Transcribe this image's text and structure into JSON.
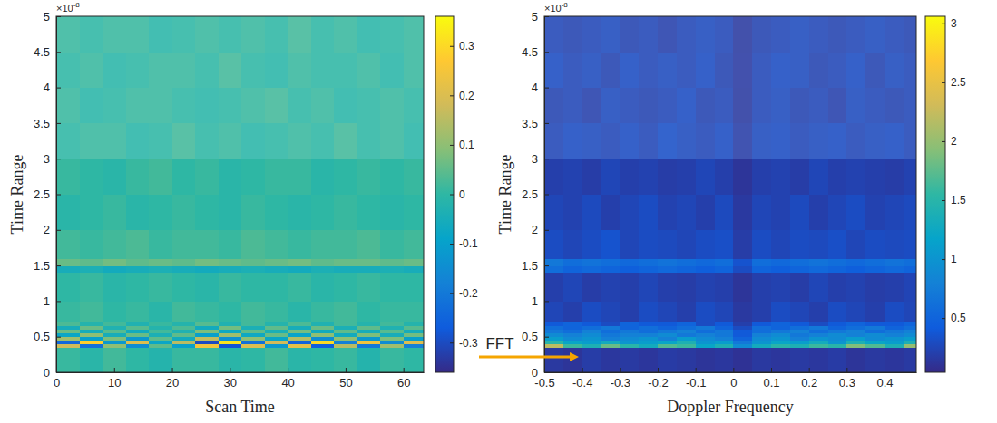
{
  "arrow_label": "FFT",
  "chart_data": [
    {
      "type": "heatmap",
      "x_label": "Scan Time",
      "y_label": "Time Range",
      "y_multiplier": {
        "base": "×10",
        "exponent": "-8"
      },
      "xlim": [
        0,
        63.5
      ],
      "xticks": [
        0,
        10,
        20,
        30,
        40,
        50,
        60
      ],
      "ylim": [
        0,
        5
      ],
      "yticks": [
        0,
        0.5,
        1,
        1.5,
        2,
        2.5,
        3,
        3.5,
        4,
        4.5,
        5
      ],
      "x_edges": [
        0,
        4,
        8,
        12,
        16,
        20,
        24,
        28,
        32,
        36,
        40,
        44,
        48,
        52,
        56,
        60,
        64
      ],
      "y_edges": [
        0,
        0.35,
        0.4,
        0.45,
        0.5,
        0.55,
        0.6,
        0.65,
        0.7,
        1,
        1.4,
        1.5,
        1.6,
        2,
        2.5,
        3,
        3.5,
        4,
        4.5,
        5
      ],
      "cells": [
        [
          0.01,
          -0.01,
          0.02,
          0,
          -0.02,
          0.01,
          0.01,
          -0.01,
          0,
          0.02,
          -0.01,
          0,
          0.01,
          -0.02,
          0.01,
          0
        ],
        [
          0.18,
          -0.22,
          0.1,
          -0.15,
          0.05,
          -0.1,
          0.25,
          -0.28,
          0.2,
          -0.12,
          0.22,
          -0.26,
          0.15,
          -0.2,
          0.12,
          -0.18
        ],
        [
          -0.24,
          0.28,
          -0.12,
          0.2,
          -0.08,
          0.15,
          -0.3,
          0.32,
          -0.22,
          0.18,
          -0.25,
          0.3,
          -0.18,
          0.24,
          -0.15,
          0.2
        ],
        [
          0.12,
          -0.1,
          0.08,
          -0.12,
          0.05,
          -0.06,
          0.16,
          -0.14,
          0.1,
          -0.08,
          0.14,
          -0.15,
          0.1,
          -0.12,
          0.08,
          -0.1
        ],
        [
          -0.08,
          0.1,
          -0.05,
          0.06,
          -0.04,
          0.05,
          -0.1,
          0.12,
          -0.07,
          0.06,
          -0.09,
          0.1,
          -0.06,
          0.08,
          -0.05,
          0.07
        ],
        [
          0.06,
          -0.05,
          0.04,
          -0.06,
          0.02,
          -0.03,
          0.08,
          -0.07,
          0.05,
          -0.04,
          0.07,
          -0.06,
          0.05,
          -0.05,
          0.04,
          -0.05
        ],
        [
          -0.05,
          0.06,
          -0.03,
          0.04,
          -0.02,
          0.03,
          -0.06,
          0.07,
          -0.04,
          0.05,
          -0.05,
          0.06,
          -0.04,
          0.05,
          -0.03,
          0.04
        ],
        [
          0.03,
          -0.02,
          0.02,
          -0.03,
          0.01,
          -0.02,
          0.04,
          -0.03,
          0.02,
          -0.02,
          0.03,
          -0.03,
          0.02,
          -0.02,
          0.02,
          -0.02
        ],
        [
          0.01,
          0.02,
          0,
          0.01,
          -0.01,
          0.02,
          0.01,
          0,
          0.02,
          0.01,
          -0.01,
          0.01,
          0.02,
          0,
          0.01,
          0.01
        ],
        [
          0,
          0.01,
          -0.01,
          0,
          0.01,
          0,
          -0.01,
          0.01,
          0,
          0,
          0.01,
          -0.01,
          0,
          0.01,
          0,
          0
        ],
        [
          -0.05,
          -0.04,
          -0.06,
          -0.05,
          -0.04,
          -0.05,
          -0.06,
          -0.05,
          -0.04,
          -0.05,
          -0.06,
          -0.04,
          -0.05,
          -0.05,
          -0.04,
          -0.05
        ],
        [
          0.06,
          0.05,
          0.07,
          0.05,
          0.06,
          0.05,
          0.07,
          0.06,
          0.05,
          0.06,
          0.07,
          0.05,
          0.06,
          0.06,
          0.05,
          0.06
        ],
        [
          0.02,
          0.01,
          0.02,
          0.03,
          0.01,
          0.02,
          0.02,
          0.01,
          0.03,
          0.02,
          0.01,
          0.02,
          0.02,
          0.03,
          0.01,
          0.02
        ],
        [
          -0.01,
          0,
          0.01,
          -0.01,
          0,
          0.01,
          0,
          -0.01,
          0.01,
          0,
          -0.01,
          0,
          0.01,
          0,
          -0.01,
          0
        ],
        [
          0.01,
          0,
          -0.01,
          0.01,
          0.02,
          0,
          0.01,
          -0.01,
          0,
          0.01,
          0.01,
          -0.01,
          0,
          0.01,
          0,
          0.01
        ],
        [
          0,
          0.01,
          0.01,
          -0.01,
          0,
          0.02,
          0,
          0.01,
          -0.01,
          0,
          0.01,
          0,
          0.02,
          0,
          0.01,
          -0.01
        ],
        [
          0.01,
          -0.01,
          0,
          0.01,
          0.01,
          0,
          -0.01,
          0,
          0.01,
          0.02,
          0,
          0.01,
          -0.01,
          0,
          0.01,
          0
        ],
        [
          0,
          0.01,
          -0.01,
          0,
          0.01,
          0.01,
          0,
          0.02,
          0,
          -0.01,
          0.01,
          0,
          0,
          0.01,
          -0.01,
          0.01
        ],
        [
          0.01,
          0,
          0.01,
          0.01,
          -0.01,
          0,
          0.01,
          0,
          0.01,
          0,
          0.02,
          0,
          0.01,
          -0.01,
          0,
          0.01
        ]
      ],
      "colorbar": {
        "range": [
          -0.36,
          0.36
        ],
        "ticks": [
          -0.3,
          -0.2,
          -0.1,
          0,
          0.1,
          0.2,
          0.3
        ]
      }
    },
    {
      "type": "heatmap",
      "x_label": "Doppler Frequency",
      "y_label": "Time Range",
      "y_multiplier": {
        "base": "×10",
        "exponent": "-8"
      },
      "xlim": [
        -0.5,
        0.484
      ],
      "xticks": [
        -0.5,
        -0.4,
        -0.3,
        -0.2,
        -0.1,
        0,
        0.1,
        0.2,
        0.3,
        0.4
      ],
      "ylim": [
        0,
        5
      ],
      "yticks": [
        0,
        0.5,
        1,
        1.5,
        2,
        2.5,
        3,
        3.5,
        4,
        4.5,
        5
      ],
      "x_edges": [
        -0.5,
        -0.45,
        -0.4,
        -0.35,
        -0.3,
        -0.25,
        -0.2,
        -0.15,
        -0.1,
        -0.05,
        0,
        0.05,
        0.1,
        0.15,
        0.2,
        0.25,
        0.3,
        0.35,
        0.4,
        0.45,
        0.5
      ],
      "y_edges": [
        0,
        0.35,
        0.4,
        0.45,
        0.5,
        0.55,
        0.6,
        0.65,
        0.7,
        1,
        1.4,
        1.5,
        1.6,
        2,
        2.5,
        3,
        3.5,
        4,
        4.5,
        5
      ],
      "cells": [
        [
          0.15,
          0.12,
          0.18,
          0.14,
          0.16,
          0.13,
          0.17,
          0.15,
          0.12,
          0.14,
          0.1,
          0.15,
          0.13,
          0.16,
          0.14,
          0.17,
          0.12,
          0.15,
          0.13,
          0.16
        ],
        [
          2.2,
          1.6,
          1.4,
          1.8,
          1.5,
          1.3,
          1.7,
          1.6,
          1.2,
          1.4,
          0.9,
          1.3,
          1.5,
          1.4,
          1.6,
          1.5,
          1.9,
          1.7,
          1.4,
          2.0
        ],
        [
          1.5,
          1.2,
          1.1,
          1.3,
          1.0,
          1.1,
          1.2,
          1.4,
          1.0,
          1.1,
          0.7,
          1.0,
          1.2,
          1.1,
          1.3,
          1.0,
          1.4,
          1.2,
          1.1,
          1.4
        ],
        [
          1.1,
          0.9,
          1.0,
          0.8,
          0.9,
          1.0,
          0.8,
          1.1,
          0.9,
          0.8,
          0.5,
          0.9,
          1.0,
          0.8,
          1.0,
          0.9,
          1.1,
          0.9,
          1.0,
          1.1
        ],
        [
          0.9,
          0.8,
          0.9,
          0.7,
          0.8,
          0.8,
          0.9,
          0.7,
          0.8,
          0.7,
          0.4,
          0.8,
          0.9,
          0.7,
          0.8,
          0.9,
          0.8,
          0.9,
          0.8,
          0.9
        ],
        [
          0.7,
          0.6,
          0.8,
          0.6,
          0.7,
          0.6,
          0.7,
          0.8,
          0.6,
          0.7,
          0.4,
          0.6,
          0.7,
          0.8,
          0.6,
          0.7,
          0.8,
          0.6,
          0.7,
          0.8
        ],
        [
          0.6,
          0.5,
          0.6,
          0.7,
          0.5,
          0.6,
          0.5,
          0.6,
          0.7,
          0.5,
          0.3,
          0.6,
          0.5,
          0.6,
          0.7,
          0.5,
          0.6,
          0.7,
          0.5,
          0.6
        ],
        [
          0.4,
          0.5,
          0.4,
          0.3,
          0.5,
          0.4,
          0.4,
          0.5,
          0.3,
          0.4,
          0.2,
          0.4,
          0.5,
          0.4,
          0.3,
          0.4,
          0.5,
          0.4,
          0.4,
          0.5
        ],
        [
          0.25,
          0.2,
          0.3,
          0.25,
          0.2,
          0.3,
          0.25,
          0.2,
          0.3,
          0.25,
          0.15,
          0.2,
          0.3,
          0.25,
          0.2,
          0.3,
          0.25,
          0.2,
          0.3,
          0.25
        ],
        [
          0.2,
          0.25,
          0.18,
          0.22,
          0.2,
          0.25,
          0.2,
          0.18,
          0.22,
          0.2,
          0.12,
          0.2,
          0.22,
          0.18,
          0.25,
          0.2,
          0.22,
          0.18,
          0.2,
          0.24
        ],
        [
          0.6,
          0.5,
          0.55,
          0.5,
          0.45,
          0.5,
          0.55,
          0.5,
          0.45,
          0.5,
          0.3,
          0.5,
          0.45,
          0.5,
          0.55,
          0.5,
          0.45,
          0.5,
          0.55,
          0.5
        ],
        [
          0.7,
          0.6,
          0.65,
          0.6,
          0.55,
          0.6,
          0.65,
          0.6,
          0.55,
          0.6,
          0.35,
          0.6,
          0.55,
          0.6,
          0.65,
          0.6,
          0.55,
          0.6,
          0.65,
          0.6
        ],
        [
          0.3,
          0.25,
          0.3,
          0.35,
          0.25,
          0.3,
          0.28,
          0.25,
          0.3,
          0.32,
          0.18,
          0.3,
          0.25,
          0.3,
          0.28,
          0.32,
          0.25,
          0.3,
          0.28,
          0.3
        ],
        [
          0.25,
          0.22,
          0.28,
          0.2,
          0.25,
          0.3,
          0.22,
          0.25,
          0.2,
          0.28,
          0.15,
          0.25,
          0.22,
          0.28,
          0.2,
          0.25,
          0.3,
          0.22,
          0.25,
          0.28
        ],
        [
          0.2,
          0.22,
          0.18,
          0.25,
          0.2,
          0.22,
          0.18,
          0.2,
          0.25,
          0.2,
          0.12,
          0.2,
          0.22,
          0.18,
          0.25,
          0.2,
          0.22,
          0.2,
          0.18,
          0.22
        ],
        [
          0.25,
          0.3,
          0.28,
          0.25,
          0.3,
          0.25,
          0.32,
          0.28,
          0.25,
          0.3,
          0.18,
          0.28,
          0.3,
          0.25,
          0.28,
          0.3,
          0.25,
          0.28,
          0.3,
          0.25
        ],
        [
          0.22,
          0.25,
          0.2,
          0.28,
          0.25,
          0.22,
          0.25,
          0.3,
          0.22,
          0.25,
          0.15,
          0.25,
          0.28,
          0.22,
          0.25,
          0.2,
          0.28,
          0.25,
          0.22,
          0.25
        ],
        [
          0.3,
          0.25,
          0.28,
          0.22,
          0.3,
          0.25,
          0.28,
          0.25,
          0.3,
          0.22,
          0.16,
          0.25,
          0.3,
          0.28,
          0.22,
          0.25,
          0.3,
          0.22,
          0.28,
          0.25
        ],
        [
          0.25,
          0.22,
          0.25,
          0.28,
          0.22,
          0.25,
          0.2,
          0.25,
          0.28,
          0.25,
          0.15,
          0.22,
          0.25,
          0.28,
          0.25,
          0.22,
          0.25,
          0.28,
          0.25,
          0.22
        ]
      ],
      "colorbar": {
        "range": [
          0.04,
          3.06
        ],
        "ticks": [
          0.5,
          1,
          1.5,
          2,
          2.5,
          3
        ]
      }
    }
  ]
}
